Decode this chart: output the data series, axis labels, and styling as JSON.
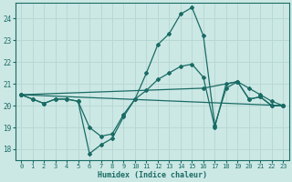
{
  "xlabel": "Humidex (Indice chaleur)",
  "xlim": [
    -0.5,
    23.5
  ],
  "ylim": [
    17.5,
    24.7
  ],
  "yticks": [
    18,
    19,
    20,
    21,
    22,
    23,
    24
  ],
  "xticks": [
    0,
    1,
    2,
    3,
    4,
    5,
    6,
    7,
    8,
    9,
    10,
    11,
    12,
    13,
    14,
    15,
    16,
    17,
    18,
    19,
    20,
    21,
    22,
    23
  ],
  "bg_color": "#cce8e5",
  "grid_color": "#b8d8d4",
  "line_color": "#1a6b65",
  "series": [
    {
      "x": [
        0,
        1,
        2,
        3,
        4,
        5,
        6,
        7,
        8,
        9,
        10,
        11,
        12,
        13,
        14,
        15,
        16,
        17,
        18,
        19,
        20,
        21,
        22,
        23
      ],
      "y": [
        20.5,
        20.3,
        20.1,
        20.3,
        20.3,
        20.2,
        17.8,
        18.2,
        18.5,
        19.5,
        20.3,
        21.5,
        22.8,
        23.3,
        24.2,
        24.5,
        23.2,
        19.1,
        20.8,
        21.1,
        20.3,
        20.4,
        20.0,
        20.0
      ]
    },
    {
      "x": [
        0,
        1,
        2,
        3,
        4,
        5,
        6,
        7,
        8,
        9,
        10,
        11,
        12,
        13,
        14,
        15,
        16,
        17,
        18,
        19,
        20,
        21,
        22,
        23
      ],
      "y": [
        20.5,
        20.3,
        20.1,
        20.3,
        20.3,
        20.2,
        19.0,
        18.6,
        18.7,
        19.6,
        20.3,
        20.7,
        21.2,
        21.5,
        21.8,
        21.9,
        21.3,
        19.0,
        21.0,
        21.1,
        20.3,
        20.4,
        20.0,
        20.0
      ]
    },
    {
      "x": [
        0,
        23
      ],
      "y": [
        20.5,
        20.0
      ]
    },
    {
      "x": [
        0,
        16,
        19,
        20,
        21,
        22,
        23
      ],
      "y": [
        20.5,
        20.8,
        21.1,
        20.8,
        20.5,
        20.2,
        20.0
      ]
    }
  ]
}
